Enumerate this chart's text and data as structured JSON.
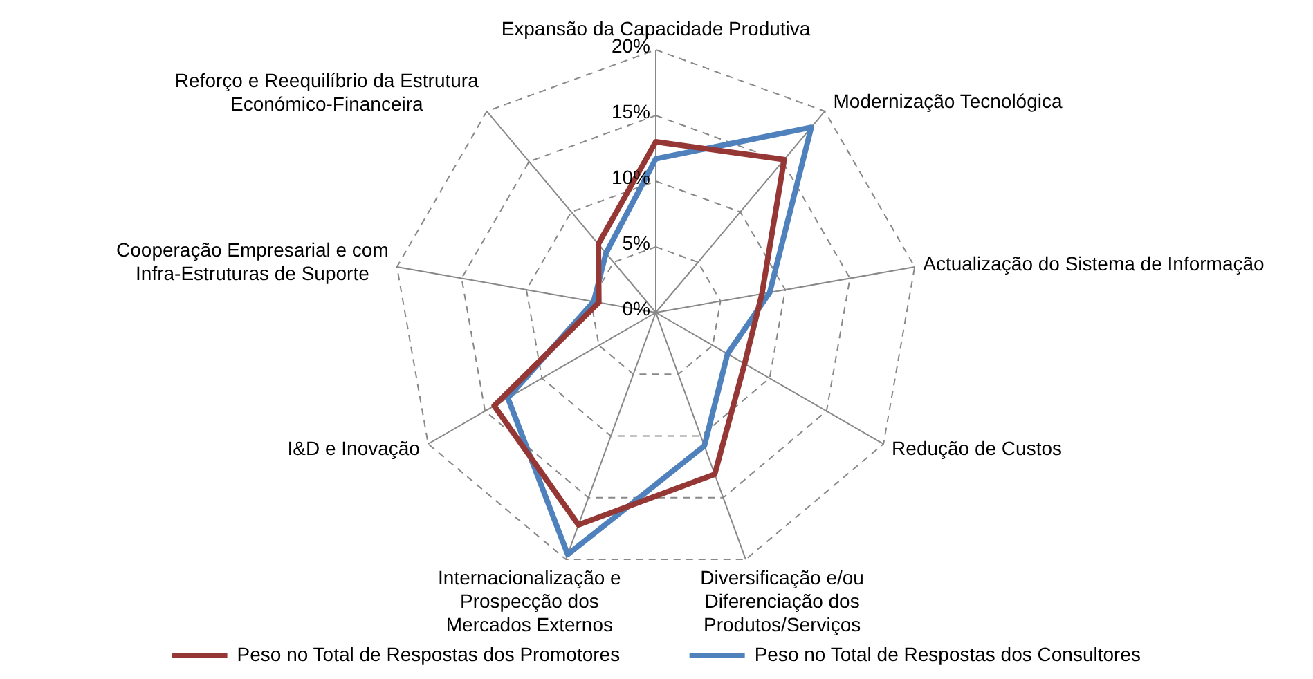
{
  "chart_data": {
    "type": "radar",
    "categories": [
      "Expansão da Capacidade Produtiva",
      "Modernização Tecnológica",
      "Actualização do Sistema de Informação",
      "Redução de Custos",
      "Diversificação e/ou Diferenciação dos Produtos/Serviços",
      "Internacionalização e Prospecção dos Mercados Externos",
      "I&D e Inovação",
      "Cooperação Empresarial e com Infra-Estruturas de Suporte",
      "Reforço e Reequilíbrio da Estrutura Económico-Financeira"
    ],
    "series": [
      {
        "name": "Peso no Total de Respostas dos Promotores",
        "color": "#953735",
        "values": [
          13.0,
          15.2,
          8.2,
          7.8,
          13.1,
          17.2,
          14.2,
          4.4,
          6.8
        ]
      },
      {
        "name": "Peso no Total de Respostas dos Consultores",
        "color": "#4f81bd",
        "values": [
          11.7,
          18.4,
          8.8,
          6.3,
          10.8,
          19.6,
          13.0,
          4.8,
          5.9
        ]
      }
    ],
    "ylim": [
      0,
      20
    ],
    "yticks": [
      {
        "value": 0,
        "label": "0%"
      },
      {
        "value": 5,
        "label": "5%"
      },
      {
        "value": 10,
        "label": "10%"
      },
      {
        "value": 15,
        "label": "15%"
      },
      {
        "value": 20,
        "label": "20%"
      }
    ],
    "grid": true,
    "legend": "bottom",
    "marker": "none",
    "line_style": "solid"
  }
}
